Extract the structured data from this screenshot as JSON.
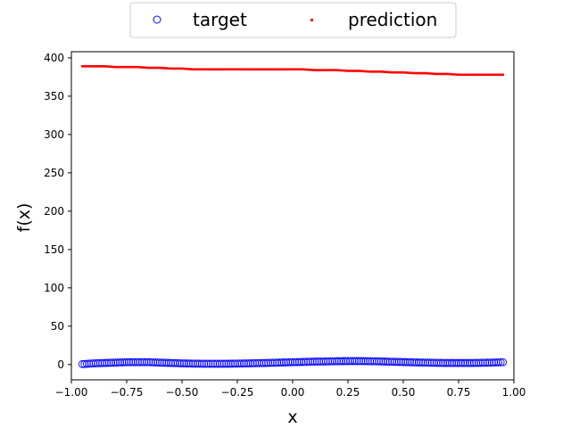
{
  "chart_data": {
    "type": "scatter",
    "xlabel": "x",
    "ylabel": "f(x)",
    "xlim": [
      -1.0,
      1.0
    ],
    "ylim": [
      -20,
      408
    ],
    "xticks": [
      -1.0,
      -0.75,
      -0.5,
      -0.25,
      0.0,
      0.25,
      0.5,
      0.75,
      1.0
    ],
    "xtick_labels": [
      "−1.00",
      "−0.75",
      "−0.50",
      "−0.25",
      "0.00",
      "0.25",
      "0.50",
      "0.75",
      "1.00"
    ],
    "yticks": [
      0,
      50,
      100,
      150,
      200,
      250,
      300,
      350,
      400
    ],
    "ytick_labels": [
      "0",
      "50",
      "100",
      "150",
      "200",
      "250",
      "300",
      "350",
      "400"
    ],
    "grid": false,
    "legend": {
      "placement": "top-center",
      "columns": 2
    },
    "series": [
      {
        "name": "target",
        "marker": "open-circle",
        "color": "#0000ff",
        "points": [
          [
            -0.95,
            0.5
          ],
          [
            -0.9,
            1.5
          ],
          [
            -0.85,
            2.0
          ],
          [
            -0.8,
            2.5
          ],
          [
            -0.75,
            3.0
          ],
          [
            -0.7,
            3.0
          ],
          [
            -0.65,
            3.0
          ],
          [
            -0.6,
            2.5
          ],
          [
            -0.55,
            2.0
          ],
          [
            -0.5,
            1.5
          ],
          [
            -0.45,
            1.2
          ],
          [
            -0.4,
            1.0
          ],
          [
            -0.35,
            1.0
          ],
          [
            -0.3,
            1.0
          ],
          [
            -0.25,
            1.2
          ],
          [
            -0.2,
            1.5
          ],
          [
            -0.15,
            1.8
          ],
          [
            -0.1,
            2.2
          ],
          [
            -0.05,
            2.6
          ],
          [
            0.0,
            3.0
          ],
          [
            0.05,
            3.4
          ],
          [
            0.1,
            3.8
          ],
          [
            0.15,
            4.0
          ],
          [
            0.2,
            4.3
          ],
          [
            0.25,
            4.5
          ],
          [
            0.3,
            4.5
          ],
          [
            0.35,
            4.3
          ],
          [
            0.4,
            4.0
          ],
          [
            0.45,
            3.6
          ],
          [
            0.5,
            3.2
          ],
          [
            0.55,
            2.8
          ],
          [
            0.6,
            2.5
          ],
          [
            0.65,
            2.2
          ],
          [
            0.7,
            2.0
          ],
          [
            0.75,
            2.0
          ],
          [
            0.8,
            2.0
          ],
          [
            0.85,
            2.2
          ],
          [
            0.9,
            2.5
          ],
          [
            0.95,
            3.0
          ]
        ]
      },
      {
        "name": "prediction",
        "marker": "point",
        "color": "#ff0000",
        "points": [
          [
            -0.95,
            389
          ],
          [
            -0.9,
            389
          ],
          [
            -0.85,
            389
          ],
          [
            -0.8,
            388
          ],
          [
            -0.75,
            388
          ],
          [
            -0.7,
            388
          ],
          [
            -0.65,
            387
          ],
          [
            -0.6,
            387
          ],
          [
            -0.55,
            386
          ],
          [
            -0.5,
            386
          ],
          [
            -0.45,
            385
          ],
          [
            -0.4,
            385
          ],
          [
            -0.35,
            385
          ],
          [
            -0.3,
            385
          ],
          [
            -0.25,
            385
          ],
          [
            -0.2,
            385
          ],
          [
            -0.15,
            385
          ],
          [
            -0.1,
            385
          ],
          [
            -0.05,
            385
          ],
          [
            0.0,
            385
          ],
          [
            0.05,
            385
          ],
          [
            0.1,
            384
          ],
          [
            0.15,
            384
          ],
          [
            0.2,
            384
          ],
          [
            0.25,
            383
          ],
          [
            0.3,
            383
          ],
          [
            0.35,
            382
          ],
          [
            0.4,
            382
          ],
          [
            0.45,
            381
          ],
          [
            0.5,
            381
          ],
          [
            0.55,
            380
          ],
          [
            0.6,
            380
          ],
          [
            0.65,
            379
          ],
          [
            0.7,
            379
          ],
          [
            0.75,
            378
          ],
          [
            0.8,
            378
          ],
          [
            0.85,
            378
          ],
          [
            0.9,
            378
          ],
          [
            0.95,
            378
          ]
        ]
      }
    ]
  }
}
